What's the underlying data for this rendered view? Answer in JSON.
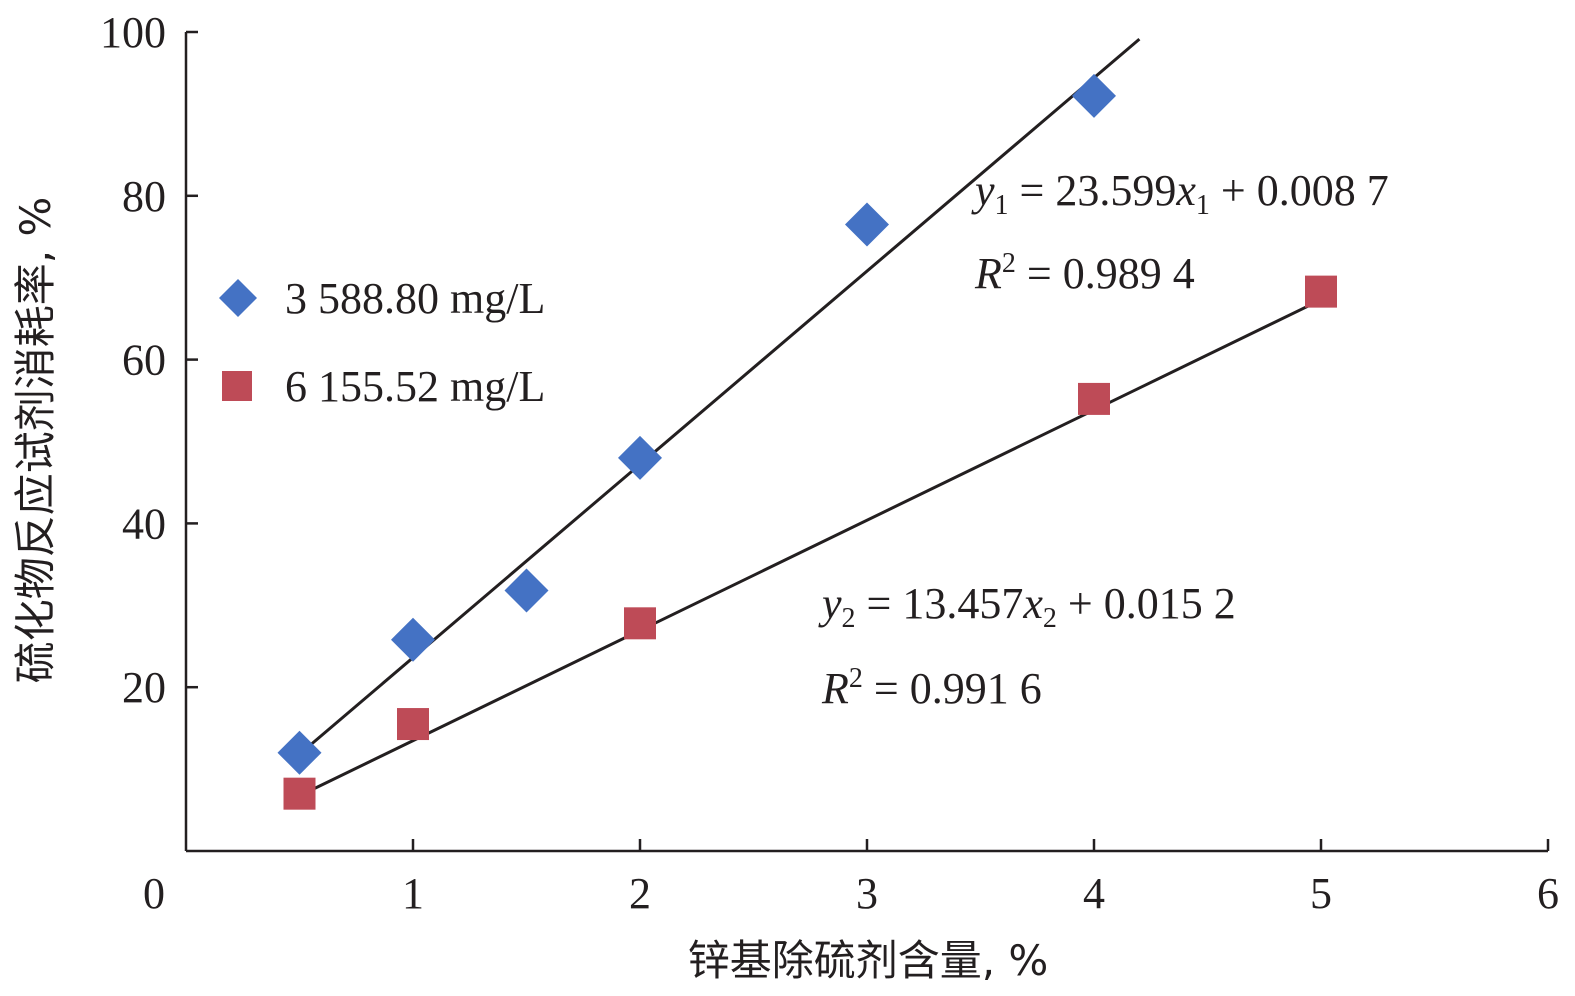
{
  "chart_data": {
    "type": "scatter",
    "xlabel": "锌基除硫剂含量, %",
    "ylabel": "硫化物反应试剂消耗率, %",
    "xlim": [
      0,
      6
    ],
    "ylim": [
      0,
      100
    ],
    "x_ticks": [
      0,
      1,
      2,
      3,
      4,
      5,
      6
    ],
    "y_ticks": [
      20,
      40,
      60,
      80,
      100
    ],
    "legend_position": "center-left",
    "grid": false,
    "series": [
      {
        "name": "3 588.80 mg/L",
        "marker": "diamond",
        "color": "#4472c4",
        "x": [
          0.5,
          1.0,
          1.5,
          2.0,
          3.0,
          4.0
        ],
        "y": [
          12.0,
          25.8,
          31.8,
          48.0,
          76.5,
          92.2
        ],
        "fit": {
          "slope": 23.599,
          "intercept": 0.0087,
          "x_range": [
            0.5,
            4.2
          ]
        },
        "equation": {
          "y": "y",
          "sub": "1",
          "eq": " = 23.599",
          "x": "x",
          "xsub": "1",
          "rest": " + 0.008 7"
        },
        "r2": {
          "r": "R",
          "sup": "2",
          "rest": " = 0.989 4"
        }
      },
      {
        "name": "6 155.52 mg/L",
        "marker": "square",
        "color": "#be4b57",
        "x": [
          0.5,
          1.0,
          2.0,
          4.0,
          5.0
        ],
        "y": [
          7.0,
          15.5,
          27.8,
          55.2,
          68.3
        ],
        "fit": {
          "slope": 13.457,
          "intercept": 0.0152,
          "x_range": [
            0.5,
            5.0
          ]
        },
        "equation": {
          "y": "y",
          "sub": "2",
          "eq": " = 13.457",
          "x": "x",
          "xsub": "2",
          "rest": " + 0.015 2"
        },
        "r2": {
          "r": "R",
          "sup": "2",
          "rest": " = 0.991 6"
        }
      }
    ]
  }
}
